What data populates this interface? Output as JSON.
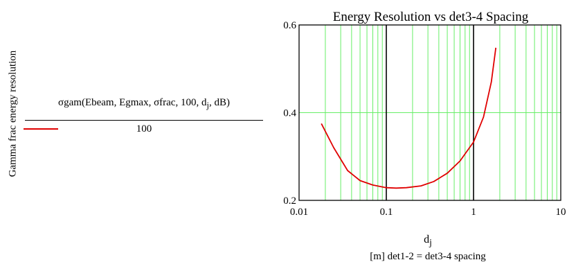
{
  "chart_data": {
    "type": "line",
    "title": "Energy Resolution vs det3-4 Spacing",
    "ylabel": "Gamma frac energy resolution",
    "xlabel_var": "d",
    "xlabel_sub": "j",
    "xlabel_unit": "[m] det1-2 = det3-4 spacing",
    "x_scale": "log",
    "xlim": [
      0.01,
      10
    ],
    "ylim": [
      0.2,
      0.6
    ],
    "x_ticks": [
      0.01,
      0.1,
      1,
      10
    ],
    "x_tick_labels": [
      "0.01",
      "0.1",
      "1",
      "10"
    ],
    "y_ticks": [
      0.2,
      0.4,
      0.6
    ],
    "y_tick_labels": [
      "0.2",
      "0.4",
      "0.6"
    ],
    "grid": true,
    "series": [
      {
        "color": "#e00000",
        "x": [
          0.018,
          0.025,
          0.036,
          0.05,
          0.07,
          0.1,
          0.13,
          0.17,
          0.25,
          0.35,
          0.5,
          0.7,
          1.0,
          1.3,
          1.6,
          1.8
        ],
        "y": [
          0.375,
          0.32,
          0.268,
          0.245,
          0.235,
          0.229,
          0.228,
          0.229,
          0.233,
          0.243,
          0.262,
          0.29,
          0.333,
          0.39,
          0.47,
          0.548
        ]
      }
    ]
  },
  "expression": {
    "numerator": "σgam(Ebeam, Egmax, σfrac, 100, d",
    "numerator_sub": "j",
    "numerator_tail": ", dB)",
    "denominator": "100"
  },
  "colors": {
    "grid_minor": "#66ee66",
    "grid_major": "#000000",
    "series": "#e00000"
  }
}
